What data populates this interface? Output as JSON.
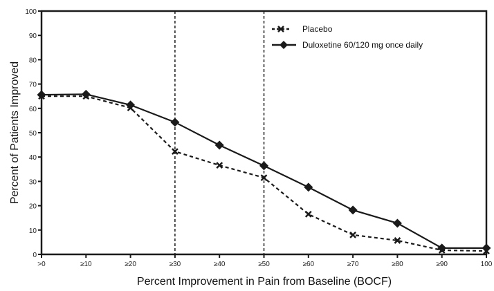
{
  "chart_data": {
    "type": "line",
    "title": "",
    "xlabel": "Percent Improvement in Pain from Baseline (BOCF)",
    "ylabel": "Percent of Patients Improved",
    "categories": [
      ">0",
      "≥10",
      "≥20",
      "≥30",
      "≥40",
      "≥50",
      "≥60",
      "≥70",
      "≥80",
      "≥90",
      "100"
    ],
    "ylim": [
      0,
      100
    ],
    "yticks": [
      0,
      10,
      20,
      30,
      40,
      50,
      60,
      70,
      80,
      90,
      100
    ],
    "grid": false,
    "reference_lines": [
      "≥30",
      "≥50"
    ],
    "legend_position": "top-right",
    "series": [
      {
        "name": "Placebo",
        "style": "dashed",
        "marker": "x",
        "values": [
          65.0,
          65.0,
          60.2,
          42.3,
          36.6,
          31.5,
          16.5,
          8.0,
          5.7,
          1.7,
          1.4
        ]
      },
      {
        "name": "Duloxetine 60/120 mg once daily",
        "style": "solid",
        "marker": "diamond",
        "values": [
          65.6,
          65.8,
          61.4,
          54.3,
          44.9,
          36.4,
          27.6,
          18.2,
          12.8,
          2.6,
          2.6
        ]
      }
    ],
    "colors": {
      "line": "#1a1a1a",
      "axis": "#1a1a1a"
    }
  }
}
